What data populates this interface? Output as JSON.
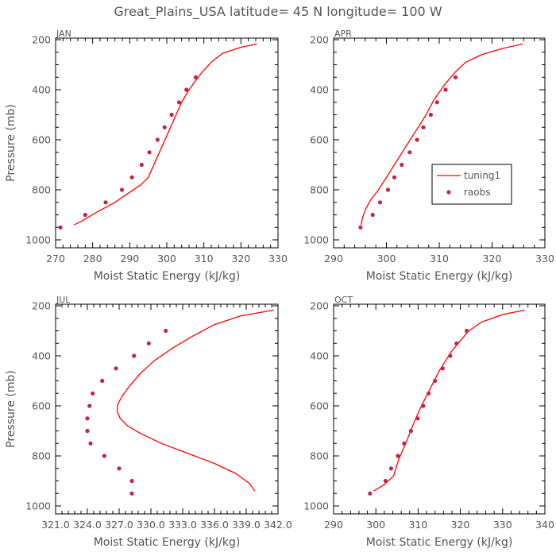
{
  "title": "Great_Plains_USA   latitude= 45 N longitude= 100 W",
  "colors": {
    "model": "#ff0000",
    "obs": "#c0264a",
    "text": "#555555",
    "axis": "#000000"
  },
  "chart_data": [
    {
      "type": "line",
      "panel": "JAN",
      "title": "JAN",
      "xlabel": "Moist Static Energy (kJ/kg)",
      "ylabel": "Pressure (mb)",
      "xlim": [
        270,
        330
      ],
      "ylim": [
        1000,
        200
      ],
      "xticks": [
        "270",
        "280",
        "290",
        "300",
        "310",
        "320",
        "330"
      ],
      "yticks": [
        "200",
        "400",
        "600",
        "800",
        "1000"
      ],
      "series": [
        {
          "name": "tuning1",
          "kind": "line",
          "x": [
            324.3,
            320,
            315,
            312,
            309.5,
            308,
            306,
            304,
            302.5,
            301,
            299.5,
            298,
            296.5,
            295,
            293,
            290,
            286,
            281,
            277,
            275
          ],
          "y": [
            217,
            230,
            255,
            290,
            330,
            360,
            400,
            450,
            500,
            550,
            600,
            650,
            700,
            750,
            780,
            810,
            850,
            890,
            925,
            940
          ]
        },
        {
          "name": "raobs",
          "kind": "scatter",
          "x": [
            307.8,
            305.3,
            303.3,
            301.3,
            299.4,
            297.5,
            295.3,
            293.2,
            290.6,
            287.9,
            283.5,
            278.0,
            271.3
          ],
          "y": [
            350,
            400,
            450,
            500,
            550,
            600,
            650,
            700,
            750,
            800,
            850,
            900,
            950
          ]
        }
      ]
    },
    {
      "type": "line",
      "panel": "APR",
      "title": "APR",
      "xlabel": "Moist Static Energy (kJ/kg)",
      "ylabel": "",
      "xlim": [
        290,
        330
      ],
      "ylim": [
        1000,
        200
      ],
      "xticks": [
        "290",
        "300",
        "310",
        "320",
        "330"
      ],
      "yticks": [
        "200",
        "400",
        "600",
        "800",
        "1000"
      ],
      "series": [
        {
          "name": "tuning1",
          "kind": "line",
          "x": [
            325.8,
            322,
            318,
            315,
            313,
            311,
            309,
            307.5,
            306,
            304.5,
            303,
            301.5,
            300,
            298.5,
            297,
            296,
            295.5,
            295.2
          ],
          "y": [
            217,
            235,
            260,
            290,
            330,
            380,
            440,
            500,
            550,
            600,
            650,
            700,
            750,
            800,
            840,
            880,
            910,
            940
          ]
        },
        {
          "name": "raobs",
          "kind": "scatter",
          "x": [
            313.1,
            311.2,
            309.6,
            308.4,
            307.0,
            305.8,
            304.4,
            302.9,
            301.5,
            300.3,
            298.8,
            297.4,
            295.1
          ],
          "y": [
            350,
            400,
            450,
            500,
            550,
            600,
            650,
            700,
            750,
            800,
            850,
            900,
            950
          ]
        }
      ],
      "legend": {
        "position": "right-middle",
        "entries": [
          "tuning1",
          "raobs"
        ]
      }
    },
    {
      "type": "line",
      "panel": "JUL",
      "title": "JUL",
      "xlabel": "Moist Static Energy (kJ/kg)",
      "ylabel": "Pressure (mb)",
      "xlim": [
        321.0,
        342.0
      ],
      "ylim": [
        1000,
        200
      ],
      "xticks": [
        "321.0",
        "324.0",
        "327.0",
        "330.0",
        "333.0",
        "336.0",
        "339.0",
        "342.0"
      ],
      "yticks": [
        "200",
        "400",
        "600",
        "800",
        "1000"
      ],
      "series": [
        {
          "name": "tuning1",
          "kind": "line",
          "x": [
            341.6,
            338.5,
            336,
            334,
            332,
            330.3,
            329,
            328,
            327.3,
            326.9,
            326.8,
            327.1,
            327.8,
            329,
            331,
            333.5,
            336,
            338,
            339.3,
            339.8
          ],
          "y": [
            217,
            240,
            275,
            320,
            370,
            420,
            470,
            520,
            560,
            590,
            620,
            650,
            680,
            710,
            750,
            790,
            830,
            870,
            910,
            940
          ]
        },
        {
          "name": "raobs",
          "kind": "scatter",
          "x": [
            331.4,
            329.8,
            328.4,
            326.7,
            325.4,
            324.5,
            324.2,
            324.0,
            324.0,
            324.3,
            325.6,
            327.0,
            328.2,
            328.2
          ],
          "y": [
            300,
            350,
            400,
            450,
            500,
            550,
            600,
            650,
            700,
            750,
            800,
            850,
            900,
            950
          ]
        }
      ]
    },
    {
      "type": "line",
      "panel": "OCT",
      "title": "OCT",
      "xlabel": "Moist Static Energy (kJ/kg)",
      "ylabel": "",
      "xlim": [
        290,
        340
      ],
      "ylim": [
        1000,
        200
      ],
      "xticks": [
        "290",
        "300",
        "310",
        "320",
        "330",
        "340"
      ],
      "yticks": [
        "200",
        "400",
        "600",
        "800",
        "1000"
      ],
      "series": [
        {
          "name": "tuning1",
          "kind": "line",
          "x": [
            335.2,
            330,
            325,
            322,
            320,
            318,
            316.5,
            315,
            313.5,
            312,
            310.5,
            309.2,
            308,
            306.8,
            305.5,
            304.2,
            302,
            299.5
          ],
          "y": [
            217,
            235,
            265,
            300,
            340,
            380,
            420,
            460,
            510,
            560,
            610,
            660,
            710,
            760,
            810,
            880,
            915,
            940
          ]
        },
        {
          "name": "raobs",
          "kind": "scatter",
          "x": [
            321.5,
            319.1,
            317.6,
            315.8,
            314.0,
            312.5,
            311.2,
            309.9,
            308.3,
            306.7,
            305.2,
            303.6,
            302.3,
            298.6
          ],
          "y": [
            300,
            350,
            400,
            450,
            500,
            550,
            600,
            650,
            700,
            750,
            800,
            850,
            900,
            950
          ]
        }
      ]
    }
  ]
}
